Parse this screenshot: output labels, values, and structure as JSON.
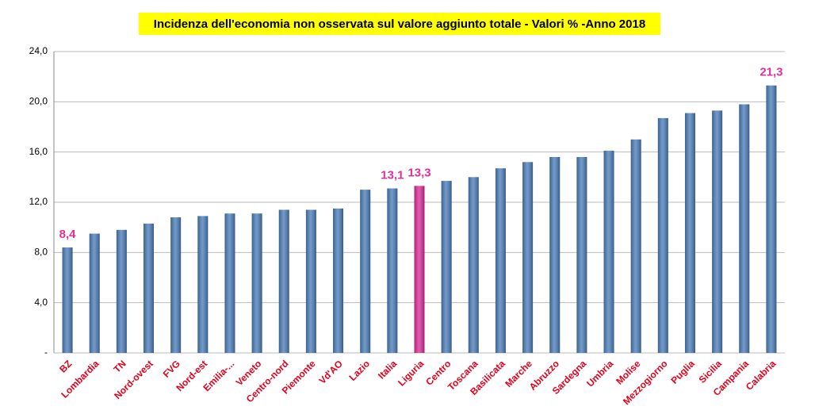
{
  "chart_data": {
    "type": "bar",
    "title": "Incidenza dell'economia non osservata sul valore aggiunto totale - Valori % -Anno 2018",
    "categories": [
      "BZ",
      "Lombardia",
      "TN",
      "Nord-ovest",
      "FVG",
      "Nord-est",
      "Emilia-...",
      "Veneto",
      "Centro-nord",
      "Piemonte",
      "Vd'AO",
      "Lazio",
      "Italia",
      "Liguria",
      "Centro",
      "Toscana",
      "Basilicata",
      "Marche",
      "Abruzzo",
      "Sardegna",
      "Umbria",
      "Molise",
      "Mezzogiorno",
      "Puglia",
      "Sicilia",
      "Campania",
      "Calabria"
    ],
    "values": [
      8.4,
      9.5,
      9.8,
      10.3,
      10.8,
      10.9,
      11.1,
      11.1,
      11.4,
      11.4,
      11.5,
      13.0,
      13.1,
      13.3,
      13.7,
      14.0,
      14.7,
      15.2,
      15.6,
      15.6,
      16.1,
      17.0,
      18.7,
      19.1,
      19.3,
      19.8,
      21.3
    ],
    "value_labels": [
      "8,4",
      null,
      null,
      null,
      null,
      null,
      null,
      null,
      null,
      null,
      null,
      null,
      "13,1",
      "13,3",
      null,
      null,
      null,
      null,
      null,
      null,
      null,
      null,
      null,
      null,
      null,
      null,
      "21,3"
    ],
    "colors": [
      "#4f81bd",
      "#4f81bd",
      "#4f81bd",
      "#4f81bd",
      "#4f81bd",
      "#4f81bd",
      "#4f81bd",
      "#4f81bd",
      "#4f81bd",
      "#4f81bd",
      "#4f81bd",
      "#4f81bd",
      "#4f81bd",
      "#e0309a",
      "#4f81bd",
      "#4f81bd",
      "#4f81bd",
      "#4f81bd",
      "#4f81bd",
      "#4f81bd",
      "#4f81bd",
      "#4f81bd",
      "#4f81bd",
      "#4f81bd",
      "#4f81bd",
      "#4f81bd",
      "#4f81bd"
    ],
    "ylim": [
      0,
      24
    ],
    "yticks": [
      {
        "value": 0,
        "label": "-"
      },
      {
        "value": 4,
        "label": "4,0"
      },
      {
        "value": 8,
        "label": "8,0"
      },
      {
        "value": 12,
        "label": "12,0"
      },
      {
        "value": 16,
        "label": "16,0"
      },
      {
        "value": 20,
        "label": "20,0"
      },
      {
        "value": 24,
        "label": "24,0"
      }
    ],
    "grid": true
  }
}
